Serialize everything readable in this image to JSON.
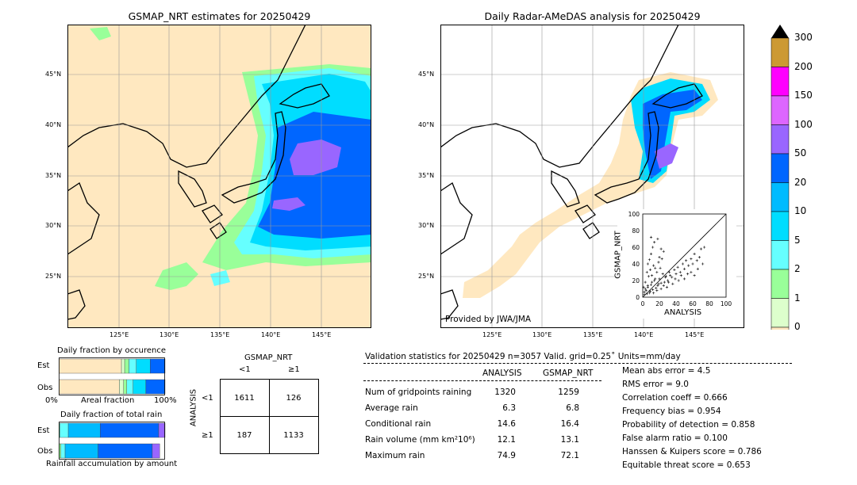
{
  "map_left": {
    "title": "GSMAP_NRT estimates for 20250429",
    "lat_labels": [
      "45°N",
      "40°N",
      "35°N",
      "30°N",
      "25°N"
    ],
    "lon_labels": [
      "125°E",
      "130°E",
      "135°E",
      "140°E",
      "145°E"
    ]
  },
  "map_right": {
    "title": "Daily Radar-AMeDAS analysis for 20250429",
    "lat_labels": [
      "45°N",
      "40°N",
      "35°N",
      "30°N",
      "25°N"
    ],
    "lon_labels": [
      "125°E",
      "130°E",
      "135°E",
      "140°E",
      "145°E"
    ],
    "credit": "Provided by JWA/JMA"
  },
  "colorbar": {
    "labels": [
      "300",
      "200",
      "150",
      "100",
      "50",
      "20",
      "10",
      "5",
      "2",
      "1",
      "0"
    ],
    "colors": [
      "#cc9933",
      "#ff00ff",
      "#dd66ff",
      "#9966ff",
      "#0066ff",
      "#00bbff",
      "#00ddff",
      "#66ffff",
      "#99ff99",
      "#ddffcc",
      "#ffe8c0"
    ]
  },
  "chart_data": [
    {
      "type": "scatter",
      "xlabel": "ANALYSIS",
      "ylabel": "GSMAP_NRT",
      "xlim": [
        0,
        100
      ],
      "ylim": [
        0,
        100
      ],
      "x_ticks": [
        "0",
        "20",
        "40",
        "60",
        "80",
        "100"
      ],
      "y_ticks": [
        "0",
        "20",
        "40",
        "60",
        "80",
        "100"
      ],
      "reference_line": "y = x",
      "points": [
        [
          2,
          3
        ],
        [
          4,
          8
        ],
        [
          6,
          12
        ],
        [
          8,
          5
        ],
        [
          10,
          15
        ],
        [
          12,
          9
        ],
        [
          14,
          20
        ],
        [
          16,
          11
        ],
        [
          18,
          14
        ],
        [
          20,
          22
        ],
        [
          22,
          17
        ],
        [
          24,
          28
        ],
        [
          26,
          18
        ],
        [
          28,
          25
        ],
        [
          30,
          20
        ],
        [
          32,
          30
        ],
        [
          35,
          24
        ],
        [
          38,
          33
        ],
        [
          40,
          28
        ],
        [
          42,
          36
        ],
        [
          45,
          30
        ],
        [
          48,
          40
        ],
        [
          50,
          34
        ],
        [
          52,
          44
        ],
        [
          55,
          38
        ],
        [
          58,
          46
        ],
        [
          60,
          40
        ],
        [
          62,
          52
        ],
        [
          65,
          44
        ],
        [
          68,
          48
        ],
        [
          70,
          58
        ],
        [
          74,
          60
        ],
        [
          5,
          30
        ],
        [
          8,
          45
        ],
        [
          10,
          52
        ],
        [
          12,
          60
        ],
        [
          6,
          40
        ],
        [
          15,
          35
        ],
        [
          20,
          48
        ],
        [
          25,
          55
        ],
        [
          3,
          18
        ],
        [
          1,
          12
        ],
        [
          7,
          25
        ],
        [
          9,
          33
        ],
        [
          11,
          26
        ],
        [
          13,
          38
        ],
        [
          17,
          30
        ],
        [
          19,
          42
        ],
        [
          21,
          35
        ],
        [
          23,
          46
        ],
        [
          2,
          6
        ],
        [
          3,
          10
        ],
        [
          5,
          4
        ],
        [
          6,
          14
        ],
        [
          9,
          7
        ],
        [
          11,
          18
        ],
        [
          13,
          5
        ],
        [
          15,
          22
        ],
        [
          17,
          8
        ],
        [
          19,
          16
        ],
        [
          22,
          10
        ],
        [
          25,
          14
        ],
        [
          27,
          24
        ],
        [
          29,
          12
        ],
        [
          31,
          18
        ],
        [
          33,
          26
        ],
        [
          36,
          16
        ],
        [
          39,
          22
        ],
        [
          43,
          20
        ],
        [
          46,
          26
        ],
        [
          50,
          22
        ],
        [
          54,
          28
        ],
        [
          58,
          30
        ],
        [
          62,
          26
        ],
        [
          66,
          34
        ],
        [
          72,
          40
        ],
        [
          14,
          66
        ],
        [
          18,
          70
        ],
        [
          10,
          72
        ],
        [
          22,
          58
        ]
      ]
    },
    {
      "type": "bar",
      "title": "Daily fraction by occurence",
      "xlabel": "Areal fraction",
      "x_ticks": [
        "0%",
        "100%"
      ],
      "categories": [
        "Est",
        "Obs"
      ],
      "series": [
        {
          "color": "#ffe8c0",
          "values": [
            0.59,
            0.57
          ]
        },
        {
          "color": "#ddffcc",
          "values": [
            0.03,
            0.04
          ]
        },
        {
          "color": "#99ff99",
          "values": [
            0.04,
            0.03
          ]
        },
        {
          "color": "#66ffff",
          "values": [
            0.07,
            0.06
          ]
        },
        {
          "color": "#00ddff",
          "values": [
            0.13,
            0.12
          ]
        },
        {
          "color": "#0066ff",
          "values": [
            0.14,
            0.18
          ]
        }
      ]
    },
    {
      "type": "bar",
      "title": "Daily fraction of total rain",
      "xlabel": "Rainfall accumulation by amount",
      "categories": [
        "Est",
        "Obs"
      ],
      "series": [
        {
          "color": "#99ff99",
          "values": [
            0.01,
            0.02
          ]
        },
        {
          "color": "#66ffff",
          "values": [
            0.08,
            0.04
          ]
        },
        {
          "color": "#00bbff",
          "values": [
            0.3,
            0.31
          ]
        },
        {
          "color": "#0066ff",
          "values": [
            0.55,
            0.51
          ]
        },
        {
          "color": "#9966ff",
          "values": [
            0.06,
            0.07
          ]
        }
      ]
    },
    {
      "type": "table",
      "title": "GSMAP_NRT",
      "col_headers": [
        "<1",
        "≥1"
      ],
      "row_label": "ANALYSIS",
      "row_headers": [
        "<1",
        "≥1"
      ],
      "cells": [
        [
          "1611",
          "126"
        ],
        [
          "187",
          "1133"
        ]
      ]
    }
  ],
  "validation": {
    "header": "Validation statistics for 20250429  n=3057 Valid. grid=0.25˚ Units=mm/day",
    "col_analysis": "ANALYSIS",
    "col_gsmap": "GSMAP_NRT",
    "rows": [
      {
        "label": "Num of gridpoints raining",
        "analysis": "1320",
        "gsmap": "1259"
      },
      {
        "label": "Average rain",
        "analysis": "6.3",
        "gsmap": "6.8"
      },
      {
        "label": "Conditional rain",
        "analysis": "14.6",
        "gsmap": "16.4"
      },
      {
        "label": "Rain volume (mm km²10⁶)",
        "analysis": "12.1",
        "gsmap": "13.1"
      },
      {
        "label": "Maximum rain",
        "analysis": "74.9",
        "gsmap": "72.1"
      }
    ],
    "scores": [
      "Mean abs error =    4.5",
      "RMS error =    9.0",
      "Correlation coeff =  0.666",
      "Frequency bias =  0.954",
      "Probability of detection =  0.858",
      "False alarm ratio =  0.100",
      "Hanssen & Kuipers score =  0.786",
      "Equitable threat score =  0.653"
    ]
  }
}
